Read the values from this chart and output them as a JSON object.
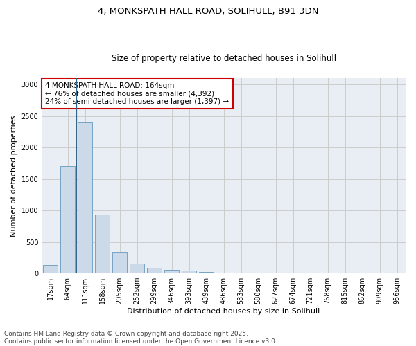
{
  "title_line1": "4, MONKSPATH HALL ROAD, SOLIHULL, B91 3DN",
  "title_line2": "Size of property relative to detached houses in Solihull",
  "xlabel": "Distribution of detached houses by size in Solihull",
  "ylabel": "Number of detached properties",
  "categories": [
    "17sqm",
    "64sqm",
    "111sqm",
    "158sqm",
    "205sqm",
    "252sqm",
    "299sqm",
    "346sqm",
    "393sqm",
    "439sqm",
    "486sqm",
    "533sqm",
    "580sqm",
    "627sqm",
    "674sqm",
    "721sqm",
    "768sqm",
    "815sqm",
    "862sqm",
    "909sqm",
    "956sqm"
  ],
  "values": [
    130,
    1700,
    2400,
    930,
    340,
    150,
    90,
    55,
    40,
    18,
    5,
    2,
    0,
    0,
    0,
    0,
    0,
    0,
    0,
    0,
    0
  ],
  "bar_color": "#ccd9e8",
  "bar_edge_color": "#6699bb",
  "annotation_text": "4 MONKSPATH HALL ROAD: 164sqm\n← 76% of detached houses are smaller (4,392)\n24% of semi-detached houses are larger (1,397) →",
  "annotation_box_color": "white",
  "annotation_box_edge_color": "#cc0000",
  "vline_x": 1.5,
  "ylim": [
    0,
    3100
  ],
  "yticks": [
    0,
    500,
    1000,
    1500,
    2000,
    2500,
    3000
  ],
  "grid_color": "#cccccc",
  "bg_color": "#e8eef4",
  "footer_line1": "Contains HM Land Registry data © Crown copyright and database right 2025.",
  "footer_line2": "Contains public sector information licensed under the Open Government Licence v3.0.",
  "title1_fontsize": 9.5,
  "title2_fontsize": 8.5,
  "axis_label_fontsize": 8,
  "tick_fontsize": 7,
  "annotation_fontsize": 7.5,
  "footer_fontsize": 6.5
}
